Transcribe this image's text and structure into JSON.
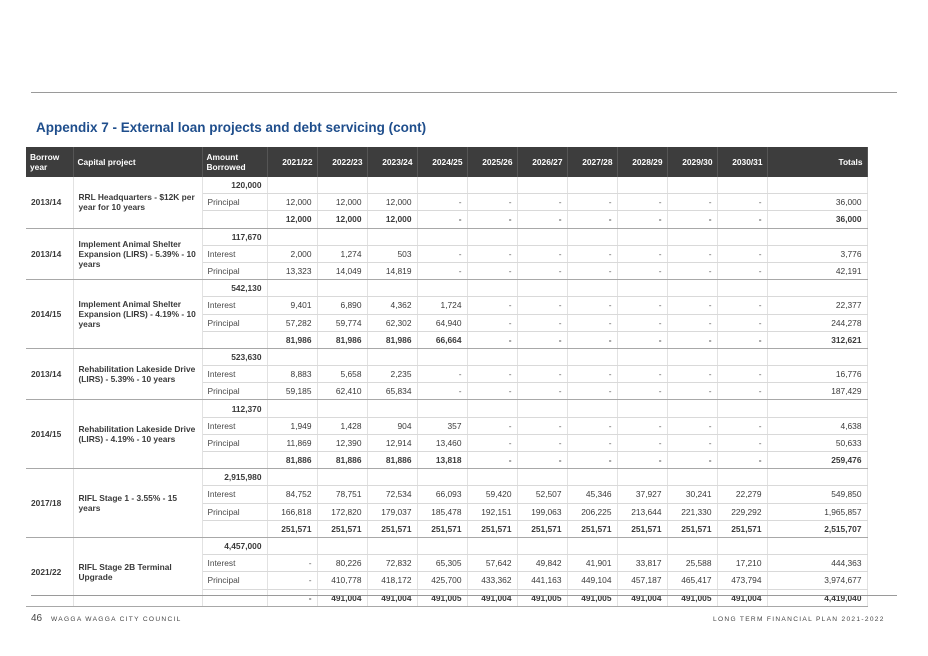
{
  "title": "Appendix 7 - External loan projects and debt servicing (cont)",
  "columns": {
    "borrow_year": "Borrow year",
    "capital_project": "Capital project",
    "amount_borrowed": "Amount Borrowed",
    "years": [
      "2021/22",
      "2022/23",
      "2023/24",
      "2024/25",
      "2025/26",
      "2026/27",
      "2027/28",
      "2028/29",
      "2029/30",
      "2030/31"
    ],
    "totals": "Totals"
  },
  "loans": [
    {
      "year": "2013/14",
      "project": "RRL Headquarters - $12K per year for 10 years",
      "amount": "120,000",
      "rows": [
        {
          "type": "Principal",
          "values": [
            "12,000",
            "12,000",
            "12,000",
            "-",
            "-",
            "-",
            "-",
            "-",
            "-",
            "-"
          ],
          "total": "36,000"
        },
        {
          "type": "",
          "bold": true,
          "values": [
            "12,000",
            "12,000",
            "12,000",
            "-",
            "-",
            "-",
            "-",
            "-",
            "-",
            "-"
          ],
          "total": "36,000"
        }
      ]
    },
    {
      "year": "2013/14",
      "project": "Implement Animal Shelter Expansion (LIRS) - 5.39% - 10 years",
      "amount": "117,670",
      "rows": [
        {
          "type": "Interest",
          "values": [
            "2,000",
            "1,274",
            "503",
            "-",
            "-",
            "-",
            "-",
            "-",
            "-",
            "-"
          ],
          "total": "3,776"
        },
        {
          "type": "Principal",
          "values": [
            "13,323",
            "14,049",
            "14,819",
            "-",
            "-",
            "-",
            "-",
            "-",
            "-",
            "-"
          ],
          "total": "42,191"
        }
      ]
    },
    {
      "year": "2014/15",
      "project": "Implement Animal Shelter Expansion (LIRS) - 4.19% - 10 years",
      "amount": "542,130",
      "rows": [
        {
          "type": "Interest",
          "values": [
            "9,401",
            "6,890",
            "4,362",
            "1,724",
            "-",
            "-",
            "-",
            "-",
            "-",
            "-"
          ],
          "total": "22,377"
        },
        {
          "type": "Principal",
          "values": [
            "57,282",
            "59,774",
            "62,302",
            "64,940",
            "-",
            "-",
            "-",
            "-",
            "-",
            "-"
          ],
          "total": "244,278"
        },
        {
          "type": "",
          "bold": true,
          "values": [
            "81,986",
            "81,986",
            "81,986",
            "66,664",
            "-",
            "-",
            "-",
            "-",
            "-",
            "-"
          ],
          "total": "312,621"
        }
      ]
    },
    {
      "year": "2013/14",
      "project": "Rehabilitation Lakeside Drive (LIRS) - 5.39% - 10 years",
      "amount": "523,630",
      "rows": [
        {
          "type": "Interest",
          "values": [
            "8,883",
            "5,658",
            "2,235",
            "-",
            "-",
            "-",
            "-",
            "-",
            "-",
            "-"
          ],
          "total": "16,776"
        },
        {
          "type": "Principal",
          "values": [
            "59,185",
            "62,410",
            "65,834",
            "-",
            "-",
            "-",
            "-",
            "-",
            "-",
            "-"
          ],
          "total": "187,429"
        }
      ]
    },
    {
      "year": "2014/15",
      "project": "Rehabilitation Lakeside Drive (LIRS) - 4.19% - 10 years",
      "amount": "112,370",
      "rows": [
        {
          "type": "Interest",
          "values": [
            "1,949",
            "1,428",
            "904",
            "357",
            "-",
            "-",
            "-",
            "-",
            "-",
            "-"
          ],
          "total": "4,638"
        },
        {
          "type": "Principal",
          "values": [
            "11,869",
            "12,390",
            "12,914",
            "13,460",
            "-",
            "-",
            "-",
            "-",
            "-",
            "-"
          ],
          "total": "50,633"
        },
        {
          "type": "",
          "bold": true,
          "values": [
            "81,886",
            "81,886",
            "81,886",
            "13,818",
            "-",
            "-",
            "-",
            "-",
            "-",
            "-"
          ],
          "total": "259,476"
        }
      ]
    },
    {
      "year": "2017/18",
      "project": "RIFL Stage 1 - 3.55% - 15 years",
      "amount": "2,915,980",
      "rows": [
        {
          "type": "Interest",
          "values": [
            "84,752",
            "78,751",
            "72,534",
            "66,093",
            "59,420",
            "52,507",
            "45,346",
            "37,927",
            "30,241",
            "22,279"
          ],
          "total": "549,850"
        },
        {
          "type": "Principal",
          "values": [
            "166,818",
            "172,820",
            "179,037",
            "185,478",
            "192,151",
            "199,063",
            "206,225",
            "213,644",
            "221,330",
            "229,292"
          ],
          "total": "1,965,857"
        },
        {
          "type": "",
          "bold": true,
          "values": [
            "251,571",
            "251,571",
            "251,571",
            "251,571",
            "251,571",
            "251,571",
            "251,571",
            "251,571",
            "251,571",
            "251,571"
          ],
          "total": "2,515,707"
        }
      ]
    },
    {
      "year": "2021/22",
      "project": "RIFL Stage 2B Terminal Upgrade",
      "amount": "4,457,000",
      "rows": [
        {
          "type": "Interest",
          "values": [
            "-",
            "80,226",
            "72,832",
            "65,305",
            "57,642",
            "49,842",
            "41,901",
            "33,817",
            "25,588",
            "17,210"
          ],
          "total": "444,363"
        },
        {
          "type": "Principal",
          "values": [
            "-",
            "410,778",
            "418,172",
            "425,700",
            "433,362",
            "441,163",
            "449,104",
            "457,187",
            "465,417",
            "473,794"
          ],
          "total": "3,974,677"
        },
        {
          "type": "",
          "bold": true,
          "values": [
            "-",
            "491,004",
            "491,004",
            "491,005",
            "491,004",
            "491,005",
            "491,005",
            "491,004",
            "491,005",
            "491,004"
          ],
          "total": "4,419,040"
        }
      ]
    }
  ],
  "footer": {
    "page_number": "46",
    "org": "WAGGA WAGGA CITY COUNCIL",
    "doc": "LONG TERM FINANCIAL PLAN 2021-2022"
  }
}
